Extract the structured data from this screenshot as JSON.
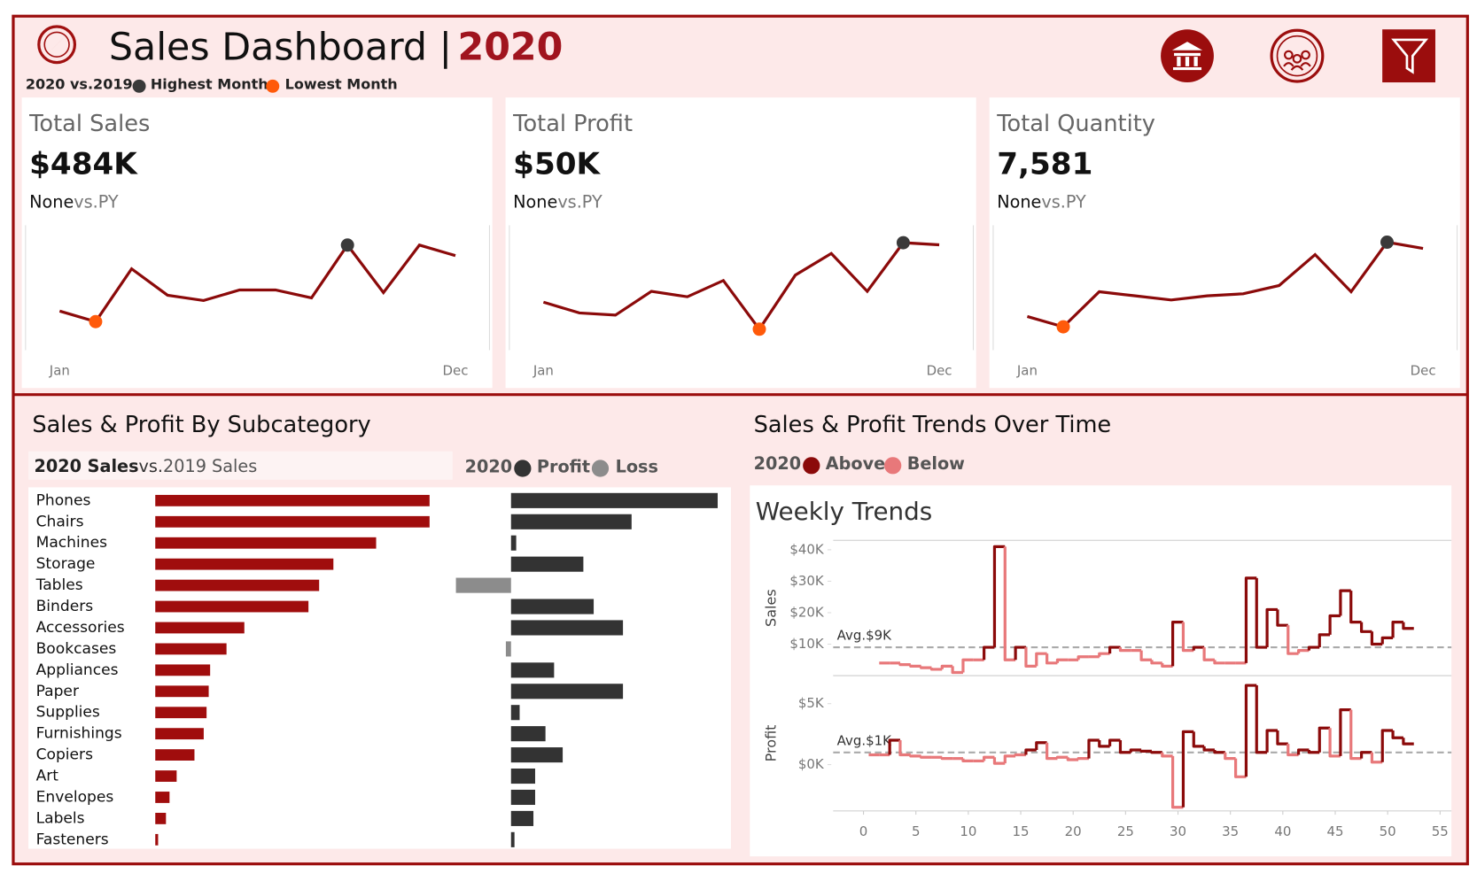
{
  "header": {
    "title": "Sales Dashboard |",
    "year": "2020",
    "legend": [
      "2020 vs.2019",
      "Highest Month",
      "Lowest Month"
    ],
    "highest_color": "#3a3a3a",
    "lowest_color": "#ff5a0a"
  },
  "kpis": [
    {
      "title": "Total Sales",
      "value": "$484K",
      "comparison": "None",
      "suffix": "vs.PY"
    },
    {
      "title": "Total Profit",
      "value": "$50K",
      "comparison": "None",
      "suffix": "vs.PY"
    },
    {
      "title": "Total Quantity",
      "value": "7,581",
      "comparison": "None",
      "suffix": "vs.PY"
    }
  ],
  "chart_data": [
    {
      "type": "line",
      "categories": [
        "Jan",
        null,
        null,
        null,
        null,
        null,
        null,
        null,
        null,
        null,
        null,
        "Dec"
      ],
      "values": [
        28,
        24,
        44,
        34,
        32,
        36,
        36,
        33,
        53,
        35,
        53,
        49
      ],
      "color": "#8b0a0a",
      "ylim": [
        15,
        58
      ],
      "highest": 8,
      "lowest": 1
    },
    {
      "type": "line",
      "categories": [
        "Jan",
        null,
        null,
        null,
        null,
        null,
        null,
        null,
        null,
        null,
        null,
        "Dec"
      ],
      "values": [
        3,
        2,
        1.8,
        4,
        3.5,
        5,
        0.5,
        5.5,
        7.5,
        4,
        8.5,
        8.3
      ],
      "color": "#8b0a0a",
      "ylim": [
        -1,
        9.5
      ],
      "highest": 10,
      "lowest": 6
    },
    {
      "type": "line",
      "categories": [
        "Jan",
        null,
        null,
        null,
        null,
        null,
        null,
        null,
        null,
        null,
        null,
        "Dec"
      ],
      "values": [
        520,
        470,
        640,
        620,
        600,
        620,
        630,
        670,
        820,
        640,
        880,
        850
      ],
      "color": "#8b0a0a",
      "ylim": [
        380,
        930
      ],
      "highest": 10,
      "lowest": 1
    },
    {
      "type": "hbar",
      "title": "Sales & Profit By Subcategory",
      "categories": [
        "Phones",
        "Chairs",
        "Machines",
        "Storage",
        "Tables",
        "Binders",
        "Accessories",
        "Bookcases",
        "Appliances",
        "Paper",
        "Supplies",
        "Furnishings",
        "Copiers",
        "Art",
        "Envelopes",
        "Labels",
        "Fasteners"
      ],
      "compare_labels": [
        "vs.",
        "2019 Sales"
      ],
      "profit_legend_year": "2020",
      "series": [
        {
          "name": "2020 Sales",
          "color": "#a00d0d",
          "xlim": [
            0,
            80
          ],
          "values": [
            77,
            77,
            62,
            50,
            46,
            43,
            25,
            20,
            15.4,
            15,
            14.4,
            13.6,
            11,
            6,
            4,
            3,
            0.8
          ]
        },
        {
          "name": "Profit",
          "color": "#333333",
          "negative_name": "Loss",
          "negative_color": "#8c8c8c",
          "xlim": [
            -4,
            12
          ],
          "values": [
            12,
            7,
            0.3,
            4.2,
            -3.2,
            4.8,
            6.5,
            -0.3,
            2.5,
            6.5,
            0.5,
            2,
            3,
            1.4,
            1.4,
            1.3,
            0.2
          ]
        }
      ]
    },
    {
      "type": "step",
      "section_title": "Sales & Profit Trends Over Time",
      "title": "Weekly Trends",
      "legend": [
        "2020",
        "Above",
        "Below"
      ],
      "above_color": "#8b0a0a",
      "below_color": "#e8787a",
      "x": [
        1,
        2,
        3,
        4,
        5,
        6,
        7,
        8,
        9,
        10,
        11,
        12,
        13,
        14,
        15,
        16,
        17,
        18,
        19,
        20,
        21,
        22,
        23,
        24,
        25,
        26,
        27,
        28,
        29,
        30,
        31,
        32,
        33,
        34,
        35,
        36,
        37,
        38,
        39,
        40,
        41,
        42,
        43,
        44,
        45,
        46,
        47,
        48,
        49,
        50,
        51,
        52
      ],
      "xlim": [
        0,
        55
      ],
      "xticks": [
        0,
        5,
        10,
        15,
        20,
        25,
        30,
        35,
        40,
        45,
        50,
        55
      ],
      "panels": [
        {
          "name": "Sales",
          "ylim": [
            0,
            43
          ],
          "yticks": [
            {
              "value": 10,
              "label": "$10K"
            },
            {
              "value": 20,
              "label": "$20K"
            },
            {
              "value": 30,
              "label": "$30K"
            },
            {
              "value": 40,
              "label": "$40K"
            }
          ],
          "avg": 9,
          "avg_label": "Avg.$9K",
          "values": [
            null,
            4,
            4,
            3.5,
            3,
            2.5,
            2,
            3,
            1,
            5,
            5,
            9,
            41,
            5,
            9,
            3,
            7,
            4,
            5,
            5,
            6,
            6,
            7,
            9,
            8,
            8,
            5,
            4,
            3,
            17,
            8,
            9,
            5,
            4,
            4,
            4,
            31,
            9,
            21,
            16,
            7,
            8,
            9,
            13,
            19,
            27,
            17,
            14,
            10,
            12,
            17,
            15
          ]
        },
        {
          "name": "Profit",
          "ylim": [
            -3.8,
            7.3
          ],
          "yticks": [
            {
              "value": 0,
              "label": "$0K"
            },
            {
              "value": 5,
              "label": "$5K"
            }
          ],
          "avg": 1,
          "avg_label": "Avg.$1K",
          "values": [
            0.8,
            0.8,
            2,
            0.8,
            0.7,
            0.6,
            0.6,
            0.5,
            0.5,
            0.3,
            0.3,
            0.6,
            0.1,
            0.7,
            0.8,
            1.2,
            1.8,
            0.5,
            0.6,
            0.4,
            0.5,
            2,
            1.5,
            2,
            1,
            1.2,
            1.1,
            1,
            0.7,
            -3.5,
            2.7,
            1.5,
            1.2,
            1,
            0.5,
            -1,
            6.5,
            1,
            2.8,
            1.7,
            0.8,
            1.2,
            1,
            3,
            0.7,
            4.5,
            0.5,
            1,
            0.2,
            2.8,
            2.2,
            1.7
          ]
        }
      ]
    }
  ]
}
